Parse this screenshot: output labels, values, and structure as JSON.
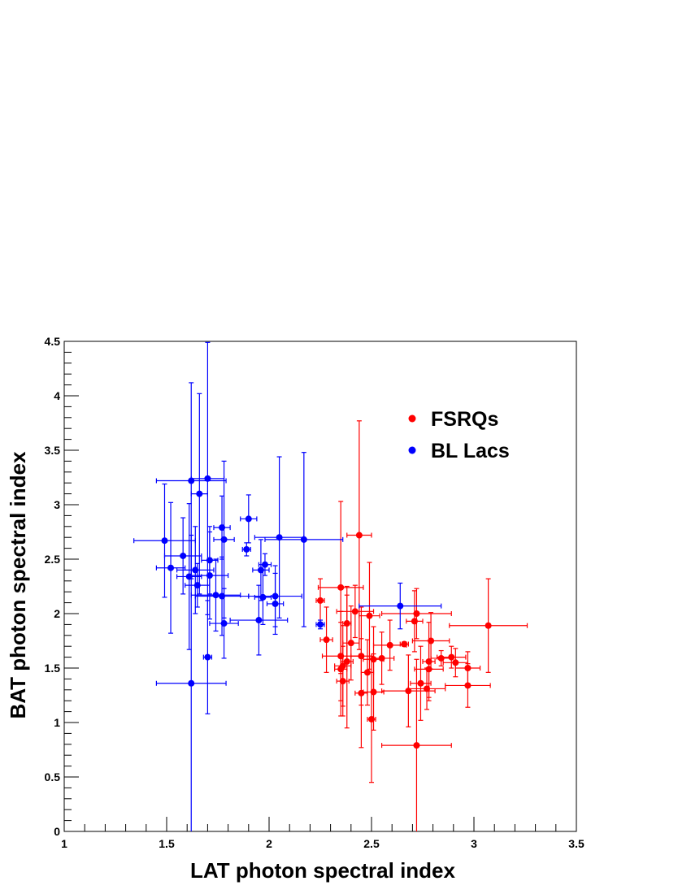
{
  "chart_data": {
    "type": "scatter",
    "title": "",
    "xlabel": "LAT photon spectral index",
    "ylabel": "BAT photon spectral index",
    "xlim": [
      1,
      3.5
    ],
    "ylim": [
      0,
      4.5
    ],
    "xticks": [
      1,
      1.5,
      2,
      2.5,
      3,
      3.5
    ],
    "yticks": [
      0,
      0.5,
      1,
      1.5,
      2,
      2.5,
      3,
      3.5,
      4,
      4.5
    ],
    "xtick_labels": [
      "1",
      "1.5",
      "2",
      "2.5",
      "3",
      "3.5"
    ],
    "ytick_labels": [
      "0",
      "0.5",
      "1",
      "1.5",
      "2",
      "2.5",
      "3",
      "3.5",
      "4",
      "4.5"
    ],
    "grid": false,
    "legend_position": "top-right",
    "series": [
      {
        "name": "FSRQs",
        "color": "#ff0000",
        "points": [
          {
            "x": 2.44,
            "y": 2.72,
            "xerr": 0.06,
            "yerr": 1.05
          },
          {
            "x": 2.25,
            "y": 2.12,
            "xerr": 0.02,
            "yerr": 0.2
          },
          {
            "x": 2.35,
            "y": 2.24,
            "xerr": 0.11,
            "yerr": 0.79
          },
          {
            "x": 2.42,
            "y": 2.02,
            "xerr": 0.09,
            "yerr": 0.24
          },
          {
            "x": 2.49,
            "y": 1.98,
            "xerr": 0.05,
            "yerr": 0.49
          },
          {
            "x": 2.38,
            "y": 1.91,
            "xerr": 0.02,
            "yerr": 0.34
          },
          {
            "x": 2.28,
            "y": 1.76,
            "xerr": 0.03,
            "yerr": 0.3
          },
          {
            "x": 2.4,
            "y": 1.73,
            "xerr": 0.04,
            "yerr": 0.34
          },
          {
            "x": 2.35,
            "y": 1.61,
            "xerr": 0.09,
            "yerr": 0.41
          },
          {
            "x": 2.45,
            "y": 1.61,
            "xerr": 0.05,
            "yerr": 0.45
          },
          {
            "x": 2.38,
            "y": 1.56,
            "xerr": 0.03,
            "yerr": 0.61
          },
          {
            "x": 2.36,
            "y": 1.52,
            "xerr": 0.04,
            "yerr": 0.37
          },
          {
            "x": 2.35,
            "y": 1.49,
            "xerr": 0.03,
            "yerr": 0.43
          },
          {
            "x": 2.36,
            "y": 1.38,
            "xerr": 0.03,
            "yerr": 0.32
          },
          {
            "x": 2.45,
            "y": 1.27,
            "xerr": 0.03,
            "yerr": 0.5
          },
          {
            "x": 2.48,
            "y": 1.46,
            "xerr": 0.03,
            "yerr": 0.3
          },
          {
            "x": 2.51,
            "y": 1.58,
            "xerr": 0.05,
            "yerr": 0.3
          },
          {
            "x": 2.55,
            "y": 1.59,
            "xerr": 0.06,
            "yerr": 0.24
          },
          {
            "x": 2.59,
            "y": 1.71,
            "xerr": 0.08,
            "yerr": 0.23
          },
          {
            "x": 2.66,
            "y": 1.72,
            "xerr": 0.02,
            "yerr": 0.02
          },
          {
            "x": 2.51,
            "y": 1.28,
            "xerr": 0.05,
            "yerr": 0.35
          },
          {
            "x": 2.5,
            "y": 1.03,
            "xerr": 0.02,
            "yerr": 0.58
          },
          {
            "x": 2.68,
            "y": 1.29,
            "xerr": 0.13,
            "yerr": 0.33
          },
          {
            "x": 2.72,
            "y": 2.0,
            "xerr": 0.17,
            "yerr": 0.23
          },
          {
            "x": 2.71,
            "y": 1.93,
            "xerr": 0.04,
            "yerr": 0.28
          },
          {
            "x": 2.72,
            "y": 0.79,
            "xerr": 0.17,
            "yerr": 0.79
          },
          {
            "x": 2.74,
            "y": 1.36,
            "xerr": 0.05,
            "yerr": 0.34
          },
          {
            "x": 2.77,
            "y": 1.31,
            "xerr": 0.09,
            "yerr": 0.19
          },
          {
            "x": 2.78,
            "y": 1.49,
            "xerr": 0.07,
            "yerr": 0.26
          },
          {
            "x": 2.78,
            "y": 1.56,
            "xerr": 0.03,
            "yerr": 0.36
          },
          {
            "x": 2.79,
            "y": 1.75,
            "xerr": 0.09,
            "yerr": 0.26
          },
          {
            "x": 2.84,
            "y": 1.59,
            "xerr": 0.05,
            "yerr": 0.07
          },
          {
            "x": 2.89,
            "y": 1.6,
            "xerr": 0.07,
            "yerr": 0.1
          },
          {
            "x": 2.91,
            "y": 1.55,
            "xerr": 0.06,
            "yerr": 0.13
          },
          {
            "x": 2.97,
            "y": 1.5,
            "xerr": 0.06,
            "yerr": 0.15
          },
          {
            "x": 2.97,
            "y": 1.34,
            "xerr": 0.11,
            "yerr": 0.2
          },
          {
            "x": 3.07,
            "y": 1.89,
            "xerr": 0.19,
            "yerr": 0.43
          }
        ]
      },
      {
        "name": "BL Lacs",
        "color": "#0000ff",
        "points": [
          {
            "x": 1.7,
            "y": 3.24,
            "xerr": 0.08,
            "yerr": 1.25
          },
          {
            "x": 1.62,
            "y": 3.22,
            "xerr": 0.17,
            "yerr": 0.9
          },
          {
            "x": 1.66,
            "y": 3.1,
            "xerr": 0.04,
            "yerr": 0.92
          },
          {
            "x": 1.9,
            "y": 2.87,
            "xerr": 0.04,
            "yerr": 0.22
          },
          {
            "x": 1.77,
            "y": 2.79,
            "xerr": 0.04,
            "yerr": 0.29
          },
          {
            "x": 1.78,
            "y": 2.68,
            "xerr": 0.05,
            "yerr": 0.72
          },
          {
            "x": 1.49,
            "y": 2.67,
            "xerr": 0.15,
            "yerr": 0.52
          },
          {
            "x": 2.05,
            "y": 2.7,
            "xerr": 0.12,
            "yerr": 0.74
          },
          {
            "x": 2.17,
            "y": 2.68,
            "xerr": 0.19,
            "yerr": 0.8
          },
          {
            "x": 1.89,
            "y": 2.59,
            "xerr": 0.02,
            "yerr": 0.06
          },
          {
            "x": 1.58,
            "y": 2.53,
            "xerr": 0.09,
            "yerr": 0.35
          },
          {
            "x": 1.71,
            "y": 2.49,
            "xerr": 0.04,
            "yerr": 0.31
          },
          {
            "x": 1.98,
            "y": 2.45,
            "xerr": 0.03,
            "yerr": 0.1
          },
          {
            "x": 1.52,
            "y": 2.42,
            "xerr": 0.07,
            "yerr": 0.6
          },
          {
            "x": 1.64,
            "y": 2.4,
            "xerr": 0.09,
            "yerr": 0.4
          },
          {
            "x": 1.96,
            "y": 2.4,
            "xerr": 0.04,
            "yerr": 0.28
          },
          {
            "x": 1.61,
            "y": 2.34,
            "xerr": 0.06,
            "yerr": 0.67
          },
          {
            "x": 1.71,
            "y": 2.35,
            "xerr": 0.09,
            "yerr": 0.4
          },
          {
            "x": 1.65,
            "y": 2.26,
            "xerr": 0.06,
            "yerr": 0.2
          },
          {
            "x": 1.74,
            "y": 2.17,
            "xerr": 0.12,
            "yerr": 0.33
          },
          {
            "x": 1.77,
            "y": 2.16,
            "xerr": 0.13,
            "yerr": 0.36
          },
          {
            "x": 1.97,
            "y": 2.15,
            "xerr": 0.04,
            "yerr": 0.25
          },
          {
            "x": 2.03,
            "y": 2.16,
            "xerr": 0.13,
            "yerr": 0.28
          },
          {
            "x": 2.03,
            "y": 2.09,
            "xerr": 0.04,
            "yerr": 0.28
          },
          {
            "x": 2.25,
            "y": 1.9,
            "xerr": 0.02,
            "yerr": 0.04
          },
          {
            "x": 1.95,
            "y": 1.94,
            "xerr": 0.14,
            "yerr": 0.32
          },
          {
            "x": 1.78,
            "y": 1.91,
            "xerr": 0.07,
            "yerr": 0.32
          },
          {
            "x": 2.64,
            "y": 2.07,
            "xerr": 0.2,
            "yerr": 0.21
          },
          {
            "x": 1.7,
            "y": 1.6,
            "xerr": 0.02,
            "yerr": 0.52
          },
          {
            "x": 1.62,
            "y": 1.36,
            "xerr": 0.17,
            "yerr": 1.36
          }
        ]
      }
    ]
  }
}
